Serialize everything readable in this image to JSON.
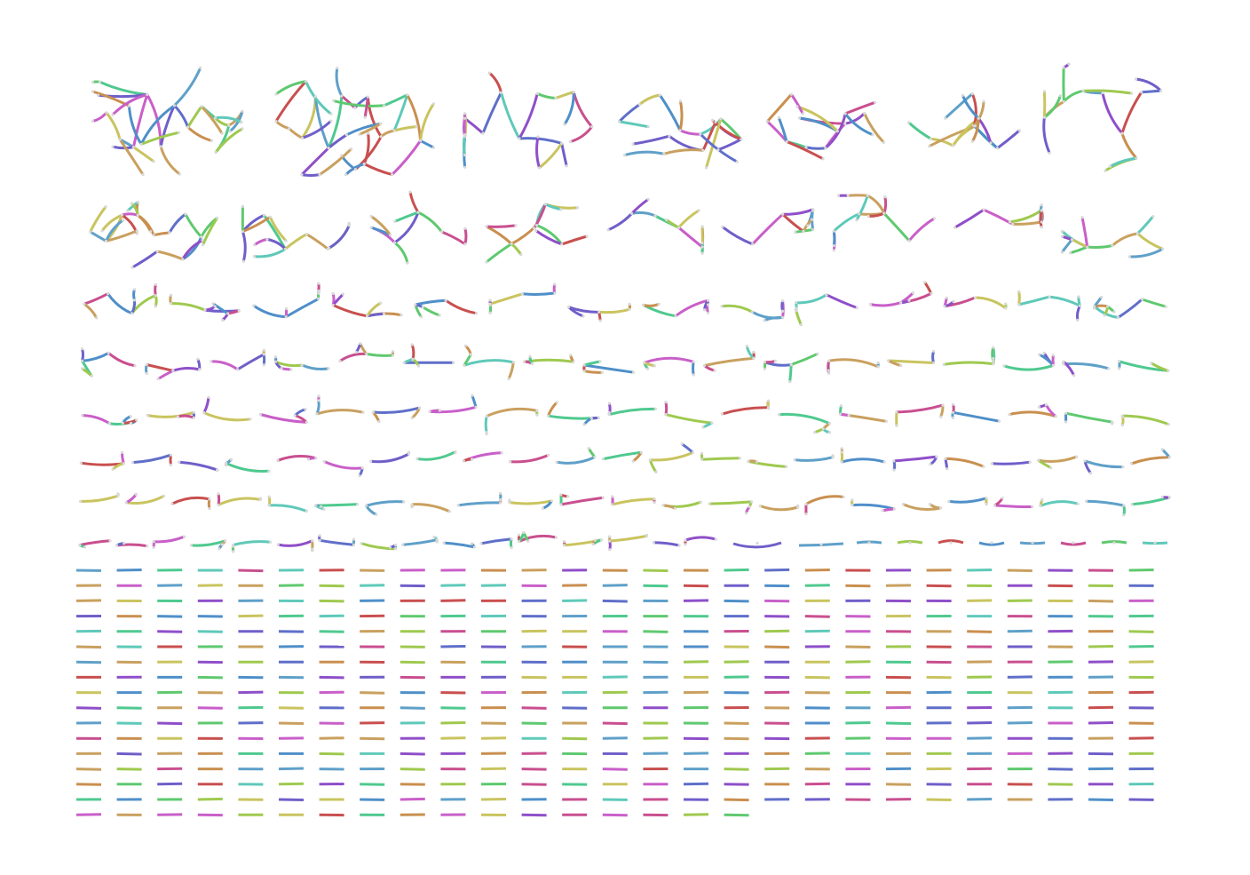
{
  "figure": {
    "description_type": "graph-component-grid",
    "background_color": "#ffffff",
    "node_color": "#d9d9d9"
  },
  "palette": [
    "#c94f4f",
    "#5fc96f",
    "#5f6fc9",
    "#c9c45f",
    "#c95fc9",
    "#5fc9b9",
    "#c98f4f",
    "#4f8fc9",
    "#9fc94f",
    "#8f4fc9",
    "#c94f8f",
    "#4fc98f",
    "#6f5fc9",
    "#c9a05f",
    "#5fa0c9"
  ],
  "components": {
    "large_rows": [
      {
        "row": 1,
        "count": 7,
        "edge_counts": [
          30,
          34,
          20,
          18,
          16,
          14,
          16
        ]
      },
      {
        "row": 2,
        "count": 9,
        "edge_counts": [
          22,
          14,
          10,
          12,
          10,
          9,
          12,
          8,
          12
        ]
      },
      {
        "row": 3,
        "count": 14,
        "edge_counts": [
          8,
          7,
          6,
          7,
          5,
          6,
          5,
          6,
          5,
          5,
          5,
          5,
          5,
          8
        ]
      },
      {
        "row": 4,
        "count": 18,
        "edge_counts": [
          5,
          5,
          5,
          5,
          5,
          4,
          4,
          4,
          4,
          4,
          4,
          5,
          4,
          3,
          4,
          4,
          3,
          4
        ]
      },
      {
        "row": 5,
        "count": 19,
        "edge_counts": [
          5,
          3,
          3,
          3,
          3,
          3,
          3,
          4,
          4,
          3,
          3,
          3,
          4,
          3,
          3,
          3,
          3,
          3,
          3
        ]
      },
      {
        "row": 6,
        "count": 23,
        "edge_counts": [
          3,
          2,
          2,
          3,
          2,
          2,
          2,
          2,
          2,
          2,
          2,
          2,
          3,
          2,
          2,
          2,
          3,
          3,
          2,
          2,
          2,
          2,
          2
        ]
      },
      {
        "row": 7,
        "count": 23,
        "edge_counts": [
          2,
          2,
          2,
          3,
          2,
          3,
          2,
          2,
          3,
          3,
          3,
          3,
          2,
          3,
          2,
          2,
          3,
          2,
          2,
          2,
          2,
          2,
          2
        ]
      },
      {
        "row": 8,
        "count": 16,
        "edge_counts": [
          2,
          2,
          2,
          3,
          4,
          3,
          3,
          3,
          3,
          2,
          2,
          4,
          4,
          4,
          1,
          2
        ]
      }
    ],
    "single_edges_row_8_tail": 8,
    "single_edge_grid": {
      "columns": 27,
      "rows": 17,
      "last_row_count": 17
    }
  }
}
